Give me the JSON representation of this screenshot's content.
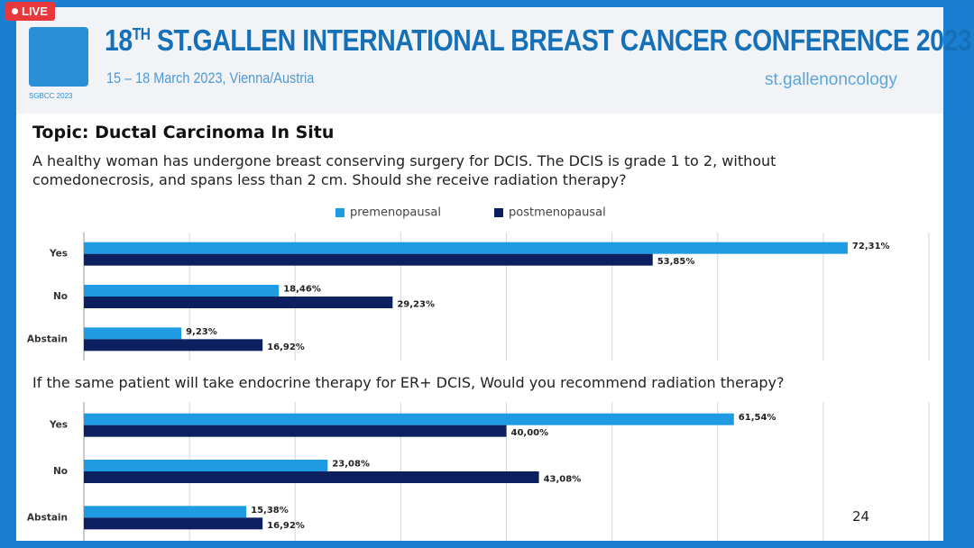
{
  "live_badge": "LIVE",
  "header": {
    "title_number": "18",
    "title_superscript": "TH",
    "title_rest": "ST.GALLEN INTERNATIONAL BREAST CANCER CONFERENCE 2023",
    "subtitle": "15 – 18 March 2023, Vienna/Austria",
    "logo_text": "SGBCC 2023",
    "brand": "st.gallenoncology"
  },
  "topic": "Topic: Ductal Carcinoma In Situ",
  "page_number": "24",
  "chart_data": [
    {
      "type": "bar",
      "orientation": "horizontal",
      "title": "A healthy woman has undergone breast conserving surgery for DCIS. The DCIS is grade 1 to 2, without comedonecrosis, and spans less than 2 cm. Should she receive radiation therapy?",
      "categories": [
        "Yes",
        "No",
        "Abstain"
      ],
      "series": [
        {
          "name": "premenopausal",
          "color": "#1e9be3",
          "values": [
            72.31,
            18.46,
            9.23
          ],
          "value_labels": [
            "72,31%",
            "18,46%",
            "9,23%"
          ]
        },
        {
          "name": "postmenopausal",
          "color": "#0c1f5e",
          "values": [
            53.85,
            29.23,
            16.92
          ],
          "value_labels": [
            "53,85%",
            "29,23%",
            "16,92%"
          ]
        }
      ],
      "xlim": [
        0,
        80
      ],
      "xticks": [
        0,
        10,
        20,
        30,
        40,
        50,
        60,
        70,
        80
      ],
      "grid": true,
      "legend": "top"
    },
    {
      "type": "bar",
      "orientation": "horizontal",
      "title": "If the same patient will take endocrine therapy for ER+ DCIS, Would you recommend radiation therapy?",
      "categories": [
        "Yes",
        "No",
        "Abstain"
      ],
      "series": [
        {
          "color": "#1e9be3",
          "values": [
            61.54,
            23.08,
            15.38
          ],
          "value_labels": [
            "61,54%",
            "23,08%",
            "15,38%"
          ]
        },
        {
          "color": "#0c1f5e",
          "values": [
            40.0,
            43.08,
            16.92
          ],
          "value_labels": [
            "40,00%",
            "43,08%",
            "16,92%"
          ]
        }
      ],
      "xlim": [
        0,
        80
      ],
      "xticks": [
        0,
        10,
        20,
        30,
        40,
        50,
        60,
        70,
        80
      ],
      "grid": true
    }
  ]
}
